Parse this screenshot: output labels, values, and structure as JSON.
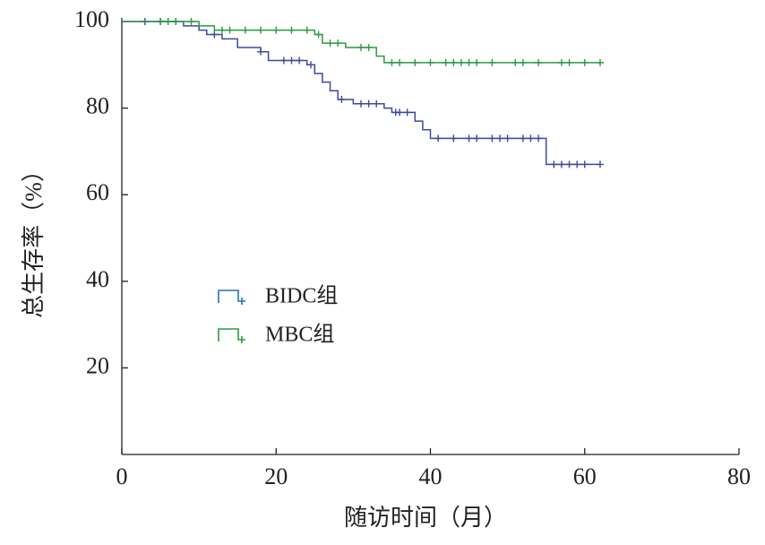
{
  "chart_data": {
    "type": "line",
    "step": "post",
    "xlabel": "随访时间（月）",
    "ylabel": "总生存率（%）",
    "xlim": [
      0,
      80
    ],
    "xticks": [
      0,
      20,
      40,
      60,
      80
    ],
    "ylim": [
      0,
      100
    ],
    "yticks": [
      20,
      40,
      60,
      80,
      100
    ],
    "legend": "center-left",
    "series": [
      {
        "name": "BIDC组",
        "color": "#3b4a9e",
        "legend_color": "#2a6fb8",
        "x": [
          0,
          8,
          10,
          11,
          13,
          15,
          18,
          19,
          24,
          25,
          26,
          27,
          28,
          30,
          34,
          35,
          38,
          39,
          40,
          55,
          62
        ],
        "values": [
          100,
          99,
          98,
          97,
          96,
          94,
          93,
          91,
          90,
          88,
          86,
          84,
          82,
          81,
          80,
          79,
          77,
          75,
          73,
          67,
          67
        ],
        "censored_x": [
          3,
          5,
          7,
          12,
          18,
          21,
          22,
          23,
          24.5,
          28.5,
          31,
          32,
          33,
          35.5,
          36,
          37,
          41,
          43,
          45,
          46,
          48,
          49,
          50,
          52,
          53,
          54,
          56,
          57,
          58,
          59,
          60,
          62
        ],
        "censored_y": [
          100,
          100,
          100,
          97,
          93,
          91,
          91,
          91,
          90,
          82,
          81,
          81,
          81,
          79,
          79,
          79,
          73,
          73,
          73,
          73,
          73,
          73,
          73,
          73,
          73,
          73,
          67,
          67,
          67,
          67,
          67,
          67
        ]
      },
      {
        "name": "MBC组",
        "color": "#2f9a45",
        "legend_color": "#2a9d3c",
        "x": [
          0,
          10,
          12,
          25,
          26,
          29,
          33,
          34,
          62
        ],
        "values": [
          100,
          99,
          98,
          97,
          95,
          94,
          92,
          90.5,
          90.5
        ],
        "censored_x": [
          5,
          6,
          7,
          9,
          13,
          14,
          16,
          18,
          20,
          22,
          24,
          25.5,
          27,
          28,
          31,
          32,
          35,
          36,
          38,
          40,
          42,
          43,
          44,
          45,
          46,
          48,
          51,
          52,
          54,
          57,
          58,
          60,
          62
        ],
        "censored_y": [
          100,
          100,
          100,
          100,
          98,
          98,
          98,
          98,
          98,
          98,
          98,
          97,
          95,
          95,
          94,
          94,
          90.5,
          90.5,
          90.5,
          90.5,
          90.5,
          90.5,
          90.5,
          90.5,
          90.5,
          90.5,
          90.5,
          90.5,
          90.5,
          90.5,
          90.5,
          90.5,
          90.5
        ]
      }
    ]
  }
}
